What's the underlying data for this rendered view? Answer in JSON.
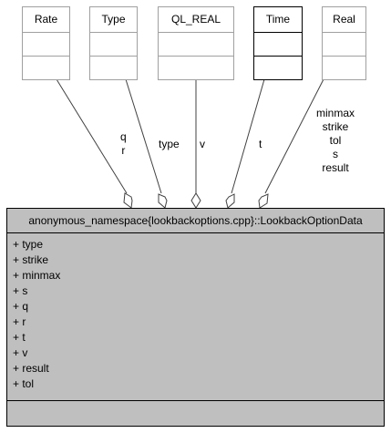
{
  "classes": [
    {
      "name": "Rate"
    },
    {
      "name": "Type"
    },
    {
      "name": "QL_REAL"
    },
    {
      "name": "Time"
    },
    {
      "name": "Real"
    }
  ],
  "edge_labels": {
    "rate": [
      "q",
      "r"
    ],
    "type": [
      "type"
    ],
    "ql_real": [
      "v"
    ],
    "time": [
      "t"
    ],
    "real": [
      "minmax",
      "strike",
      "tol",
      "s",
      "result"
    ]
  },
  "main_class": {
    "title": "anonymous_namespace{lookbackoptions.cpp}::LookbackOptionData",
    "members": [
      "+ type",
      "+ strike",
      "+ minmax",
      "+ s",
      "+ q",
      "+ r",
      "+ t",
      "+ v",
      "+ result",
      "+ tol"
    ]
  }
}
